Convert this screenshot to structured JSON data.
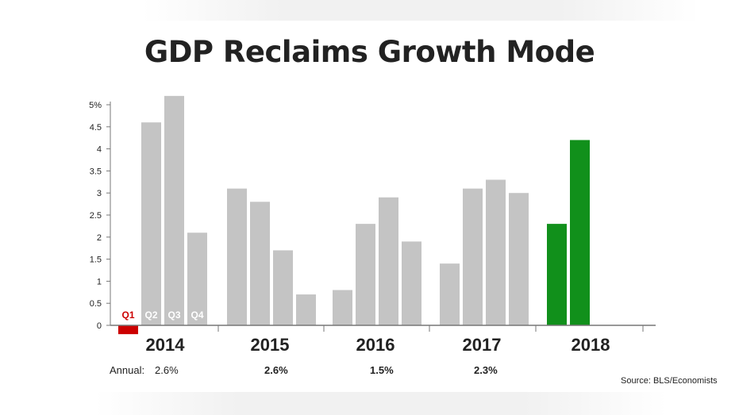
{
  "title": "GDP Reclaims Growth Mode",
  "source": "Source: BLS/Economists",
  "annual_label": "Annual:",
  "annual_values": [
    "2.6%",
    "2.6%",
    "1.5%",
    "2.3%"
  ],
  "colors": {
    "bar_default": "#c4c4c4",
    "bar_negative": "#cc0000",
    "bar_2018": "#11901b",
    "axis": "#777777",
    "text": "#222222"
  },
  "chart_data": {
    "type": "bar",
    "title": "GDP Reclaims Growth Mode",
    "xlabel": "",
    "ylabel": "",
    "ylim": [
      0,
      5
    ],
    "yticks": [
      "0",
      "0.5",
      "1",
      "1.5",
      "2",
      "2.5",
      "3",
      "3.5",
      "4",
      "4.5",
      "5%"
    ],
    "quarter_labels": [
      "Q1",
      "Q2",
      "Q3",
      "Q4"
    ],
    "years": [
      {
        "year": "2014",
        "values": [
          -0.2,
          4.6,
          5.2,
          2.1
        ]
      },
      {
        "year": "2015",
        "values": [
          3.1,
          2.8,
          1.7,
          0.7
        ]
      },
      {
        "year": "2016",
        "values": [
          0.8,
          2.3,
          2.9,
          1.9
        ]
      },
      {
        "year": "2017",
        "values": [
          1.4,
          3.1,
          3.3,
          3.0
        ]
      },
      {
        "year": "2018",
        "values": [
          2.3,
          4.2
        ]
      }
    ],
    "grid": false,
    "legend": "none"
  }
}
